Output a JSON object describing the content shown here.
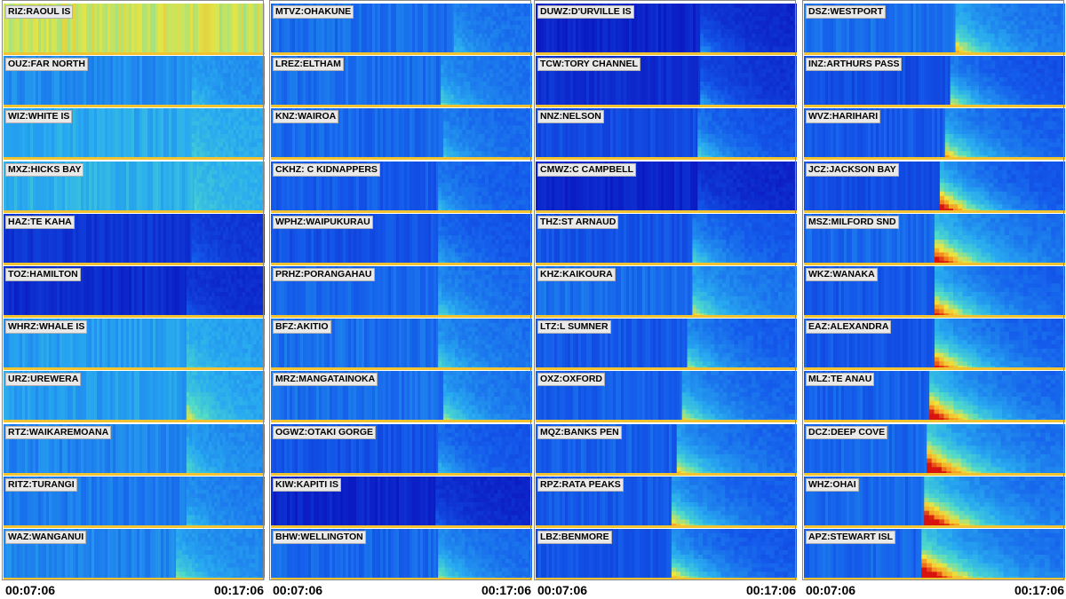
{
  "time_axis": {
    "start": "00:07:06",
    "end": "00:17:06"
  },
  "colors": {
    "low": "#0a1fd0",
    "mid": "#2aa5f0",
    "high": "#f0e040",
    "peak": "#e01010"
  },
  "chart_data": {
    "type": "heatmap",
    "x_range": [
      "00:07:06",
      "00:17:06"
    ],
    "columns": [
      {
        "stations": [
          {
            "label": "RIZ:RAOUL IS",
            "background": 0.72,
            "onset": null,
            "intensity": 0.0
          },
          {
            "label": "OUZ:FAR NORTH",
            "background": 0.38,
            "onset": 0.72,
            "intensity": 0.15
          },
          {
            "label": "WIZ:WHITE IS",
            "background": 0.45,
            "onset": 0.72,
            "intensity": 0.1
          },
          {
            "label": "MXZ:HICKS BAY",
            "background": 0.47,
            "onset": 0.73,
            "intensity": 0.1
          },
          {
            "label": "HAZ:TE KAHA",
            "background": 0.12,
            "onset": 0.72,
            "intensity": 0.15
          },
          {
            "label": "TOZ:HAMILTON",
            "background": 0.08,
            "onset": 0.7,
            "intensity": 0.15
          },
          {
            "label": "WHRZ:WHALE IS",
            "background": 0.42,
            "onset": 0.7,
            "intensity": 0.15
          },
          {
            "label": "URZ:UREWERA",
            "background": 0.42,
            "onset": 0.7,
            "intensity": 0.35
          },
          {
            "label": "RTZ:WAIKAREMOANA",
            "background": 0.36,
            "onset": 0.7,
            "intensity": 0.25
          },
          {
            "label": "RITZ:TURANGI",
            "background": 0.33,
            "onset": 0.7,
            "intensity": 0.2
          },
          {
            "label": "WAZ:WANGANUI",
            "background": 0.36,
            "onset": 0.66,
            "intensity": 0.3
          }
        ]
      },
      {
        "stations": [
          {
            "label": "MTVZ:OHAKUNE",
            "background": 0.3,
            "onset": 0.7,
            "intensity": 0.2
          },
          {
            "label": "LREZ:ELTHAM",
            "background": 0.3,
            "onset": 0.65,
            "intensity": 0.3
          },
          {
            "label": "KNZ:WAIROA",
            "background": 0.28,
            "onset": 0.66,
            "intensity": 0.25
          },
          {
            "label": "CKHZ: C KIDNAPPERS",
            "background": 0.25,
            "onset": 0.64,
            "intensity": 0.25
          },
          {
            "label": "WPHZ:WAIPUKURAU",
            "background": 0.22,
            "onset": 0.64,
            "intensity": 0.25
          },
          {
            "label": "PRHZ:PORANGAHAU",
            "background": 0.28,
            "onset": 0.64,
            "intensity": 0.3
          },
          {
            "label": "BFZ:AKITIO",
            "background": 0.3,
            "onset": 0.64,
            "intensity": 0.3
          },
          {
            "label": "MRZ:MANGATAINOKA",
            "background": 0.3,
            "onset": 0.66,
            "intensity": 0.4
          },
          {
            "label": "OGWZ:OTAKI GORGE",
            "background": 0.22,
            "onset": 0.64,
            "intensity": 0.3
          },
          {
            "label": "KIW:KAPITI IS",
            "background": 0.06,
            "onset": 0.63,
            "intensity": 0.2
          },
          {
            "label": "BHW:WELLINGTON",
            "background": 0.28,
            "onset": 0.64,
            "intensity": 0.4
          }
        ]
      },
      {
        "stations": [
          {
            "label": "DUWZ:D'URVILLE IS",
            "background": 0.06,
            "onset": 0.63,
            "intensity": 0.35
          },
          {
            "label": "TCW:TORY CHANNEL",
            "background": 0.1,
            "onset": 0.63,
            "intensity": 0.35
          },
          {
            "label": "NNZ:NELSON",
            "background": 0.2,
            "onset": 0.62,
            "intensity": 0.4
          },
          {
            "label": "CMWZ:C CAMPBELL",
            "background": 0.06,
            "onset": 0.62,
            "intensity": 0.2
          },
          {
            "label": "THZ:ST ARNAUD",
            "background": 0.22,
            "onset": 0.6,
            "intensity": 0.4
          },
          {
            "label": "KHZ:KAIKOURA",
            "background": 0.3,
            "onset": 0.6,
            "intensity": 0.45
          },
          {
            "label": "LTZ:L SUMNER",
            "background": 0.24,
            "onset": 0.58,
            "intensity": 0.45
          },
          {
            "label": "OXZ:OXFORD",
            "background": 0.26,
            "onset": 0.56,
            "intensity": 0.5
          },
          {
            "label": "MQZ:BANKS PEN",
            "background": 0.26,
            "onset": 0.54,
            "intensity": 0.55
          },
          {
            "label": "RPZ:RATA PEAKS",
            "background": 0.24,
            "onset": 0.52,
            "intensity": 0.6
          },
          {
            "label": "LBZ:BENMORE",
            "background": 0.22,
            "onset": 0.52,
            "intensity": 0.6
          }
        ]
      },
      {
        "stations": [
          {
            "label": "DSZ:WESTPORT",
            "background": 0.3,
            "onset": 0.58,
            "intensity": 0.55
          },
          {
            "label": "INZ:ARTHURS PASS",
            "background": 0.2,
            "onset": 0.56,
            "intensity": 0.55
          },
          {
            "label": "WVZ:HARIHARI",
            "background": 0.24,
            "onset": 0.54,
            "intensity": 0.6
          },
          {
            "label": "JCZ:JACKSON BAY",
            "background": 0.2,
            "onset": 0.52,
            "intensity": 0.95
          },
          {
            "label": "MSZ:MILFORD SND",
            "background": 0.28,
            "onset": 0.5,
            "intensity": 0.85
          },
          {
            "label": "WKZ:WANAKA",
            "background": 0.24,
            "onset": 0.5,
            "intensity": 0.8
          },
          {
            "label": "EAZ:ALEXANDRA",
            "background": 0.24,
            "onset": 0.5,
            "intensity": 0.8
          },
          {
            "label": "MLZ:TE ANAU",
            "background": 0.26,
            "onset": 0.48,
            "intensity": 0.95
          },
          {
            "label": "DCZ:DEEP COVE",
            "background": 0.28,
            "onset": 0.47,
            "intensity": 1.0
          },
          {
            "label": "WHZ:OHAI",
            "background": 0.28,
            "onset": 0.46,
            "intensity": 1.0
          },
          {
            "label": "APZ:STEWART ISL",
            "background": 0.28,
            "onset": 0.45,
            "intensity": 1.0
          }
        ]
      }
    ]
  }
}
